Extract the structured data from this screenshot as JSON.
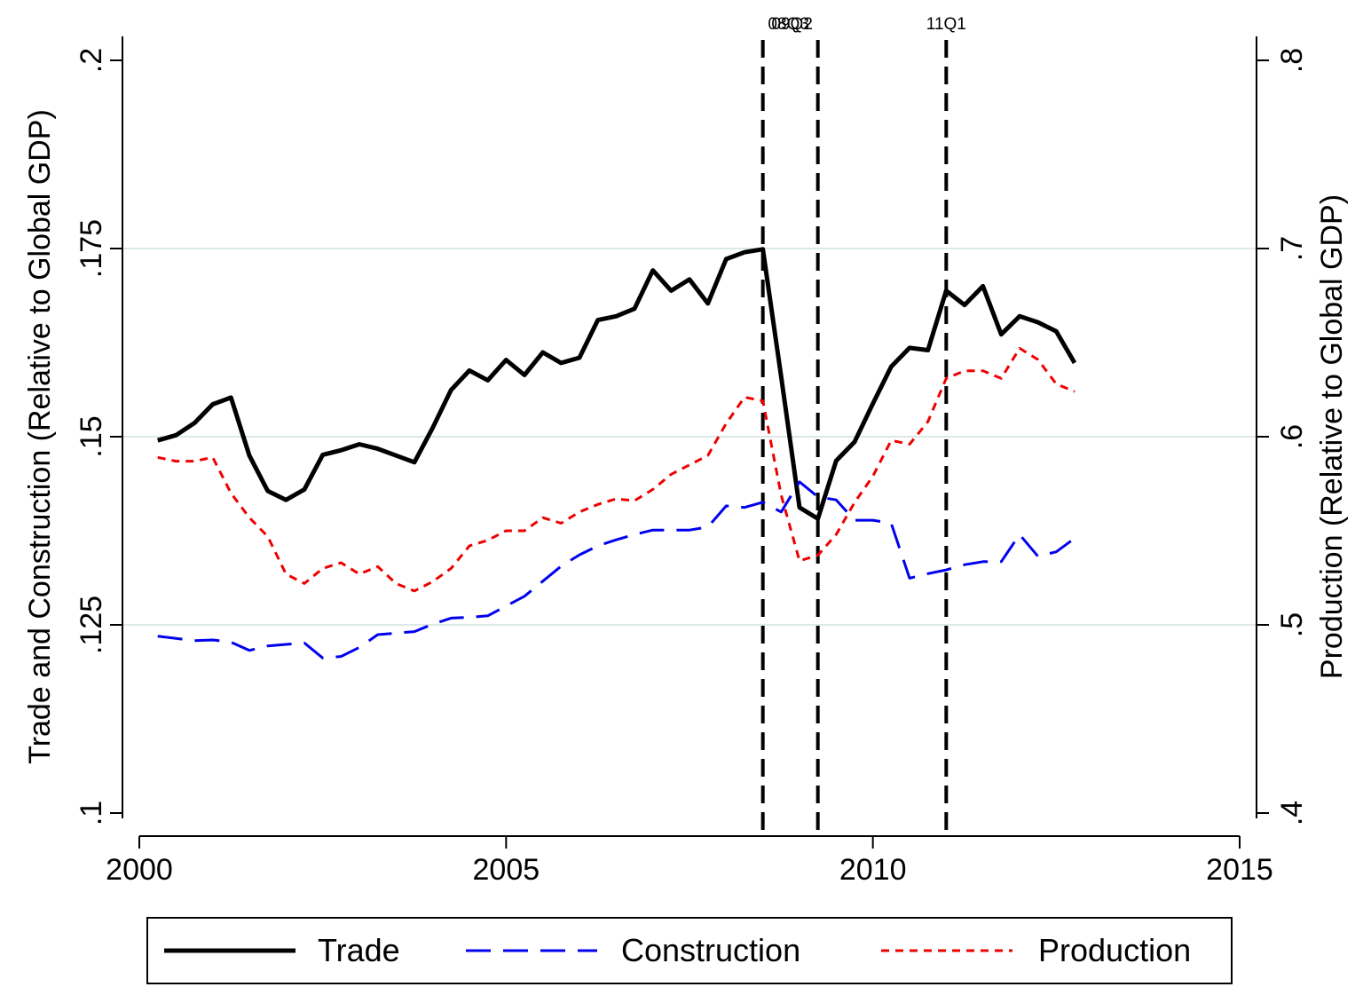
{
  "chart_data": {
    "type": "line",
    "title": "",
    "xlabel": "",
    "ylabel_left": "Trade and Construction (Relative to Global GDP)",
    "ylabel_right": "Production (Relative to Global GDP)",
    "xlim": [
      2000,
      2015
    ],
    "ylim_left": [
      0.1,
      0.2
    ],
    "ylim_right": [
      0.4,
      0.8
    ],
    "x_ticks": [
      {
        "value": 2000,
        "label": "2000"
      },
      {
        "value": 2005,
        "label": "2005"
      },
      {
        "value": 2010,
        "label": "2010"
      },
      {
        "value": 2015,
        "label": "2015"
      }
    ],
    "y_left_ticks": [
      {
        "value": 0.1,
        "label": ".1"
      },
      {
        "value": 0.125,
        "label": ".125"
      },
      {
        "value": 0.15,
        "label": ".15"
      },
      {
        "value": 0.175,
        "label": ".175"
      },
      {
        "value": 0.2,
        "label": ".2"
      }
    ],
    "y_right_ticks": [
      {
        "value": 0.4,
        "label": ".4"
      },
      {
        "value": 0.5,
        "label": ".5"
      },
      {
        "value": 0.6,
        "label": ".6"
      },
      {
        "value": 0.7,
        "label": ".7"
      },
      {
        "value": 0.8,
        "label": ".8"
      }
    ],
    "gridlines_left": [
      0.125,
      0.15,
      0.175
    ],
    "vertical_lines": [
      {
        "x": 2008.5,
        "label": "08Q3"
      },
      {
        "x": 2009.25,
        "label": "09Q2"
      },
      {
        "x": 2011.0,
        "label": "11Q1"
      }
    ],
    "series": [
      {
        "name": "Trade",
        "axis": "left",
        "color": "#000000",
        "style": "solid",
        "x": [
          2000.25,
          2000.5,
          2000.75,
          2001.0,
          2001.25,
          2001.5,
          2001.75,
          2002.0,
          2002.25,
          2002.5,
          2002.75,
          2003.0,
          2003.25,
          2003.5,
          2003.75,
          2004.0,
          2004.25,
          2004.5,
          2004.75,
          2005.0,
          2005.25,
          2005.5,
          2005.75,
          2006.0,
          2006.25,
          2006.5,
          2006.75,
          2007.0,
          2007.25,
          2007.5,
          2007.75,
          2008.0,
          2008.25,
          2008.5,
          2008.75,
          2009.0,
          2009.25,
          2009.5,
          2009.75,
          2010.0,
          2010.25,
          2010.5,
          2010.75,
          2011.0,
          2011.25,
          2011.5,
          2011.75,
          2012.0,
          2012.25,
          2012.5,
          2012.75
        ],
        "values": [
          0.1495,
          0.1502,
          0.1518,
          0.1543,
          0.1552,
          0.1475,
          0.1428,
          0.1416,
          0.143,
          0.1476,
          0.1482,
          0.149,
          0.1484,
          0.1475,
          0.1466,
          0.1512,
          0.1562,
          0.1588,
          0.1575,
          0.1602,
          0.1582,
          0.1612,
          0.1598,
          0.1605,
          0.1655,
          0.166,
          0.167,
          0.1721,
          0.1694,
          0.1709,
          0.1677,
          0.1736,
          0.1745,
          0.1749,
          0.158,
          0.1406,
          0.1391,
          0.1468,
          0.1493,
          0.1544,
          0.1593,
          0.1618,
          0.1615,
          0.1694,
          0.1675,
          0.17,
          0.1636,
          0.166,
          0.1652,
          0.164,
          0.1598
        ]
      },
      {
        "name": "Construction",
        "axis": "left",
        "color": "#0000ee",
        "style": "long-dash",
        "x": [
          2000.25,
          2000.5,
          2000.75,
          2001.0,
          2001.25,
          2001.5,
          2001.75,
          2002.0,
          2002.25,
          2002.5,
          2002.75,
          2003.0,
          2003.25,
          2003.5,
          2003.75,
          2004.0,
          2004.25,
          2004.5,
          2004.75,
          2005.0,
          2005.25,
          2005.5,
          2005.75,
          2006.0,
          2006.25,
          2006.5,
          2006.75,
          2007.0,
          2007.25,
          2007.5,
          2007.75,
          2008.0,
          2008.25,
          2008.5,
          2008.75,
          2009.0,
          2009.25,
          2009.5,
          2009.75,
          2010.0,
          2010.25,
          2010.5,
          2010.75,
          2011.0,
          2011.25,
          2011.5,
          2011.75,
          2012.0,
          2012.25,
          2012.5,
          2012.75
        ],
        "values": [
          0.1235,
          0.1232,
          0.1229,
          0.123,
          0.1227,
          0.1216,
          0.1222,
          0.1224,
          0.1226,
          0.1206,
          0.1208,
          0.122,
          0.1237,
          0.1239,
          0.1241,
          0.1251,
          0.1259,
          0.126,
          0.1262,
          0.1275,
          0.1288,
          0.1308,
          0.1328,
          0.1343,
          0.1355,
          0.1363,
          0.137,
          0.1376,
          0.1376,
          0.1376,
          0.138,
          0.1408,
          0.1406,
          0.1413,
          0.14,
          0.144,
          0.142,
          0.1416,
          0.1389,
          0.1389,
          0.1385,
          0.1312,
          0.1318,
          0.1323,
          0.133,
          0.1334,
          0.1334,
          0.137,
          0.1341,
          0.1347,
          0.1365
        ]
      },
      {
        "name": "Production",
        "axis": "right",
        "color": "#ee0000",
        "style": "short-dash",
        "x": [
          2000.25,
          2000.5,
          2000.75,
          2001.0,
          2001.25,
          2001.5,
          2001.75,
          2002.0,
          2002.25,
          2002.5,
          2002.75,
          2003.0,
          2003.25,
          2003.5,
          2003.75,
          2004.0,
          2004.25,
          2004.5,
          2004.75,
          2005.0,
          2005.25,
          2005.5,
          2005.75,
          2006.0,
          2006.25,
          2006.5,
          2006.75,
          2007.0,
          2007.25,
          2007.5,
          2007.75,
          2008.0,
          2008.25,
          2008.5,
          2008.75,
          2009.0,
          2009.25,
          2009.5,
          2009.75,
          2010.0,
          2010.25,
          2010.5,
          2010.75,
          2011.0,
          2011.25,
          2011.5,
          2011.75,
          2012.0,
          2012.25,
          2012.5,
          2012.75
        ],
        "values": [
          0.589,
          0.587,
          0.587,
          0.589,
          0.57,
          0.557,
          0.547,
          0.527,
          0.522,
          0.53,
          0.533,
          0.527,
          0.531,
          0.522,
          0.518,
          0.523,
          0.53,
          0.542,
          0.545,
          0.55,
          0.55,
          0.557,
          0.554,
          0.56,
          0.564,
          0.567,
          0.566,
          0.572,
          0.58,
          0.585,
          0.59,
          0.607,
          0.621,
          0.619,
          0.569,
          0.534,
          0.537,
          0.548,
          0.565,
          0.579,
          0.598,
          0.596,
          0.608,
          0.631,
          0.635,
          0.635,
          0.631,
          0.647,
          0.641,
          0.628,
          0.624
        ]
      }
    ],
    "legend": {
      "position": "bottom",
      "entries": [
        "Trade",
        "Construction",
        "Production"
      ]
    }
  }
}
